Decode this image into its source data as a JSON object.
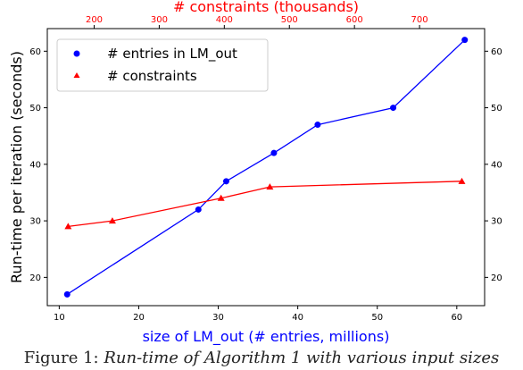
{
  "caption": {
    "label": "Figure 1:",
    "text": "Run-time of Algorithm 1 with various input sizes"
  },
  "chart_data": {
    "type": "line",
    "ylabel": "Run-time per iteration (seconds)",
    "ylim": [
      15,
      64
    ],
    "yticks": [
      20,
      30,
      40,
      50,
      60
    ],
    "grid": false,
    "legend_position": "top-left",
    "bottom_axis": {
      "label": "size of LM_out (# entries, millions)",
      "lim": [
        8.5,
        63.5
      ],
      "ticks": [
        10,
        20,
        30,
        40,
        50,
        60
      ],
      "color": "#0000ff"
    },
    "top_axis": {
      "label": "# constraints (thousands)",
      "lim": [
        128,
        800
      ],
      "ticks": [
        200,
        300,
        400,
        500,
        600,
        700
      ],
      "color": "#ff0000"
    },
    "series": [
      {
        "name": "# entries in LM_out",
        "axis": "bottom",
        "color": "#0000ff",
        "marker": "circle",
        "x": [
          11,
          27.5,
          31,
          37,
          42.5,
          52,
          61
        ],
        "y": [
          17,
          32,
          37,
          42,
          47,
          50,
          62
        ]
      },
      {
        "name": "# constraints",
        "axis": "top",
        "color": "#ff0000",
        "marker": "triangle",
        "x": [
          160,
          228,
          395,
          470,
          765
        ],
        "y": [
          29,
          30,
          34,
          36,
          37
        ]
      }
    ]
  }
}
